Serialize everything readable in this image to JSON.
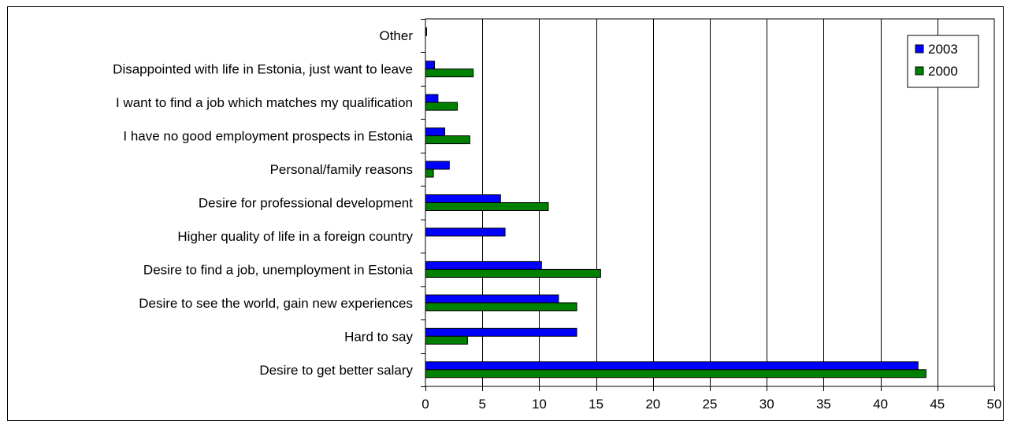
{
  "chart_data": {
    "type": "bar",
    "orientation": "horizontal",
    "title": "",
    "xlabel": "",
    "ylabel": "",
    "categories": [
      "Desire to get better salary",
      "Hard to say",
      "Desire to see the world, gain new experiences",
      "Desire to find a job, unemployment in Estonia",
      "Higher quality of life in a foreign country",
      "Desire for professional development",
      "Personal/family reasons",
      "I have no good employment prospects in Estonia",
      "I want to find a job which matches my qualification",
      "Disappointed with life in Estonia, just want to leave",
      "Other"
    ],
    "series": [
      {
        "name": "2003",
        "color": "#0000ff",
        "values": [
          43.3,
          13.3,
          11.7,
          10.2,
          7.0,
          6.6,
          2.1,
          1.7,
          1.1,
          0.8,
          0.1
        ]
      },
      {
        "name": "2000",
        "color": "#008000",
        "values": [
          44.0,
          3.7,
          13.3,
          15.4,
          null,
          10.8,
          0.7,
          3.9,
          2.8,
          4.2,
          null
        ]
      }
    ],
    "xlim": [
      0,
      50
    ],
    "xticks": [
      "0",
      "5",
      "10",
      "15",
      "20",
      "25",
      "30",
      "35",
      "40",
      "45",
      "50"
    ],
    "grid": true,
    "legend": {
      "position": "top-right",
      "entries": [
        "2003",
        "2000"
      ]
    }
  }
}
